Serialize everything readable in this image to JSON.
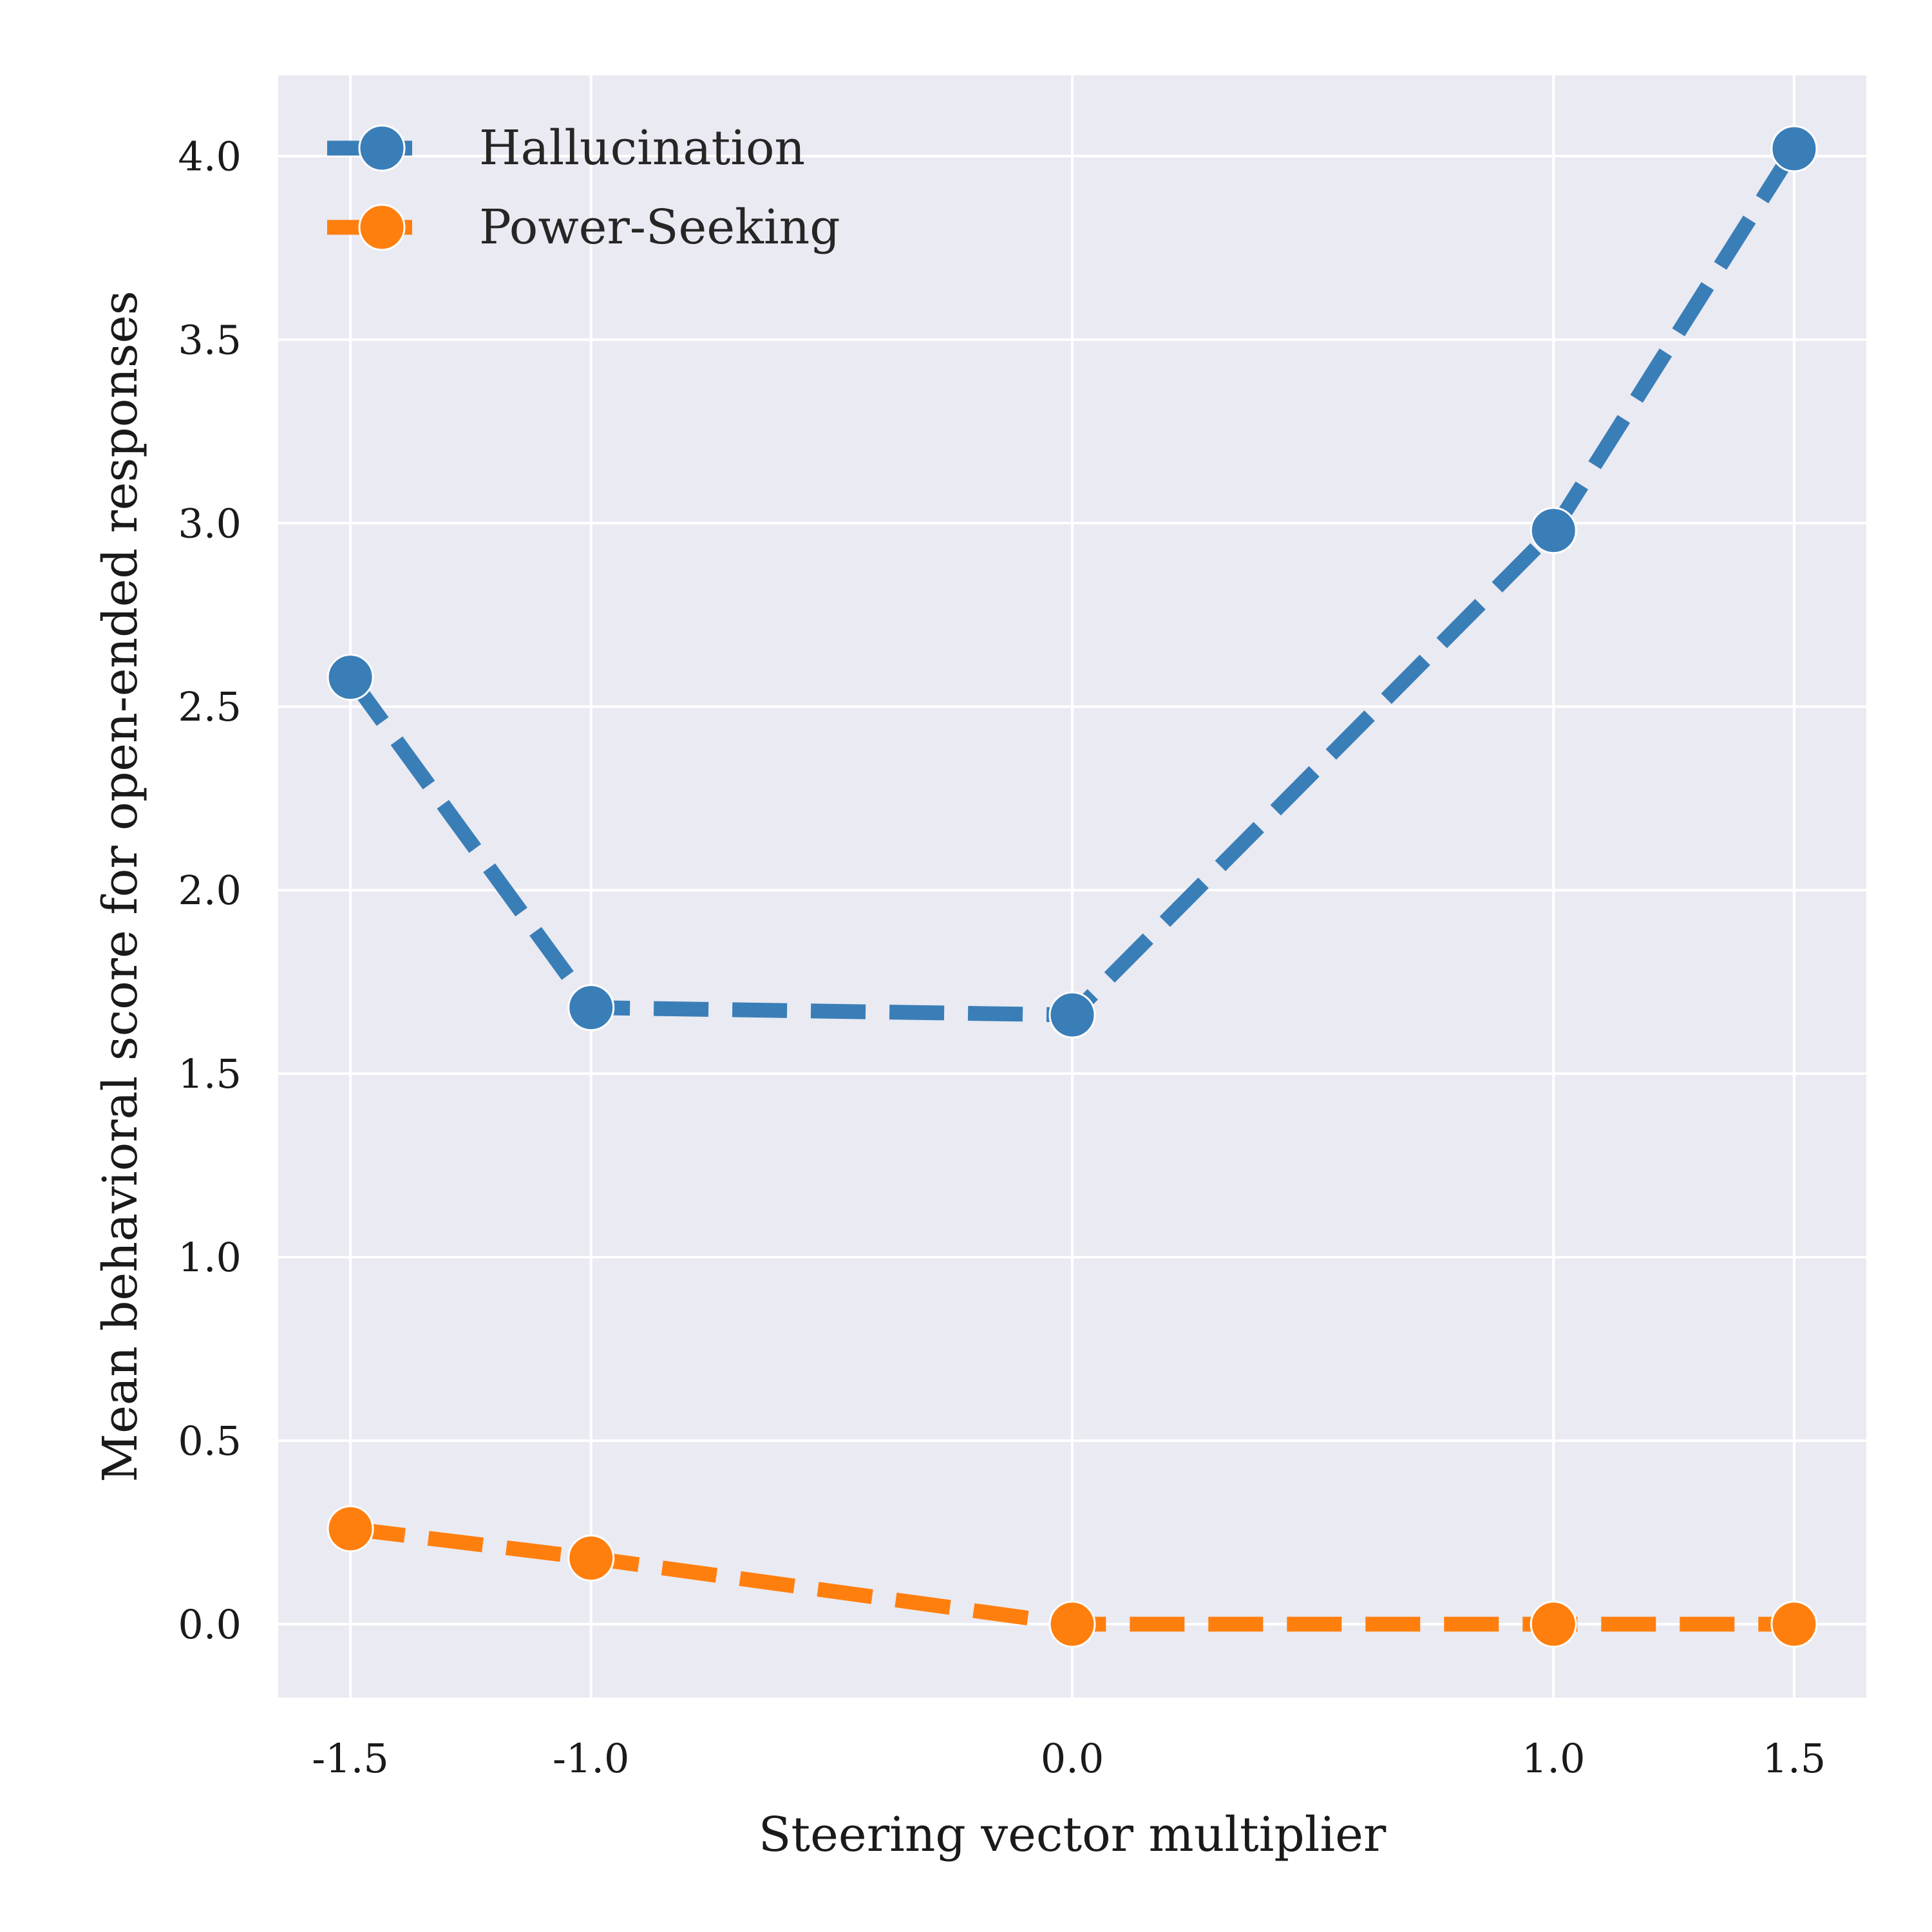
{
  "chart_data": {
    "type": "line",
    "title": "",
    "xlabel": "Steering vector multiplier",
    "ylabel": "Mean behavioral score for open-ended responses",
    "x": [
      -1.5,
      -1.0,
      0.0,
      1.0,
      1.5
    ],
    "x_tick_labels": [
      "-1.5",
      "-1.0",
      "0.0",
      "1.0",
      "1.5"
    ],
    "y_ticks": [
      0.0,
      0.5,
      1.0,
      1.5,
      2.0,
      2.5,
      3.0,
      3.5,
      4.0
    ],
    "y_tick_labels": [
      "0.0",
      "0.5",
      "1.0",
      "1.5",
      "2.0",
      "2.5",
      "3.0",
      "3.5",
      "4.0"
    ],
    "xlim": [
      -1.65,
      1.65
    ],
    "ylim": [
      -0.2,
      4.22
    ],
    "grid": true,
    "legend_position": "top-left",
    "line_style": "dashed",
    "marker": "circle",
    "series": [
      {
        "name": "Hallucination",
        "color": "#3a7eb8",
        "values": [
          2.58,
          1.68,
          1.66,
          2.98,
          4.02
        ]
      },
      {
        "name": "Power-Seeking",
        "color": "#ff7f0e",
        "values": [
          0.26,
          0.18,
          0.0,
          0.0,
          0.0
        ]
      }
    ],
    "style": {
      "plot_background": "#eaeaf2",
      "grid_color": "#ffffff"
    }
  }
}
